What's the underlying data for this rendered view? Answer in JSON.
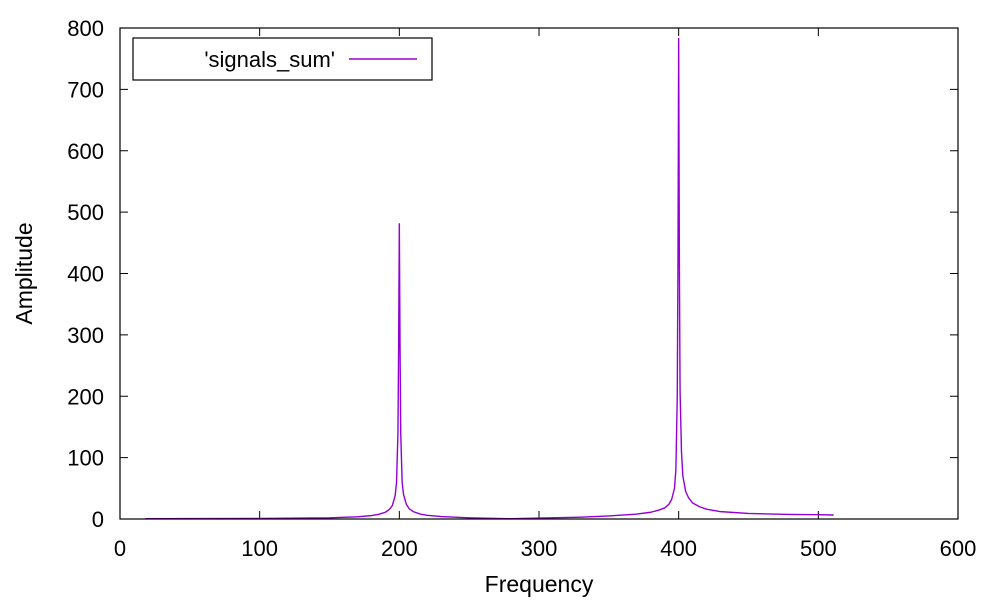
{
  "chart_data": {
    "type": "line",
    "title": "",
    "xlabel": "Frequency",
    "ylabel": "Amplitude",
    "xlim": [
      0,
      600
    ],
    "ylim": [
      0,
      800
    ],
    "xticks": [
      0,
      100,
      200,
      300,
      400,
      500,
      600
    ],
    "yticks": [
      0,
      100,
      200,
      300,
      400,
      500,
      600,
      700,
      800
    ],
    "grid": false,
    "legend_position": "top-left",
    "series": [
      {
        "name": "'signals_sum'",
        "color": "#9400d3",
        "x": [
          18,
          50,
          100,
          150,
          170,
          180,
          185,
          190,
          193,
          195,
          197,
          198,
          199,
          199.5,
          200,
          200.5,
          201,
          202,
          203,
          205,
          207,
          210,
          215,
          220,
          230,
          250,
          270,
          280,
          300,
          330,
          350,
          370,
          380,
          385,
          390,
          393,
          395,
          397,
          398,
          399,
          399.5,
          400,
          400.5,
          401,
          402,
          403,
          405,
          407,
          410,
          415,
          420,
          430,
          450,
          480,
          500,
          511
        ],
        "y": [
          0.4,
          0.6,
          1.0,
          2.0,
          3.5,
          5.5,
          7.5,
          11,
          16,
          22,
          38,
          60,
          140,
          280,
          481,
          280,
          140,
          60,
          40,
          24,
          17,
          12,
          8,
          6,
          4,
          2,
          1,
          0.5,
          1.5,
          3,
          5,
          8,
          11,
          14,
          18,
          24,
          32,
          50,
          80,
          200,
          420,
          783,
          420,
          210,
          110,
          70,
          45,
          35,
          26,
          20,
          16,
          12,
          9,
          7.5,
          7,
          6.5
        ]
      }
    ]
  }
}
